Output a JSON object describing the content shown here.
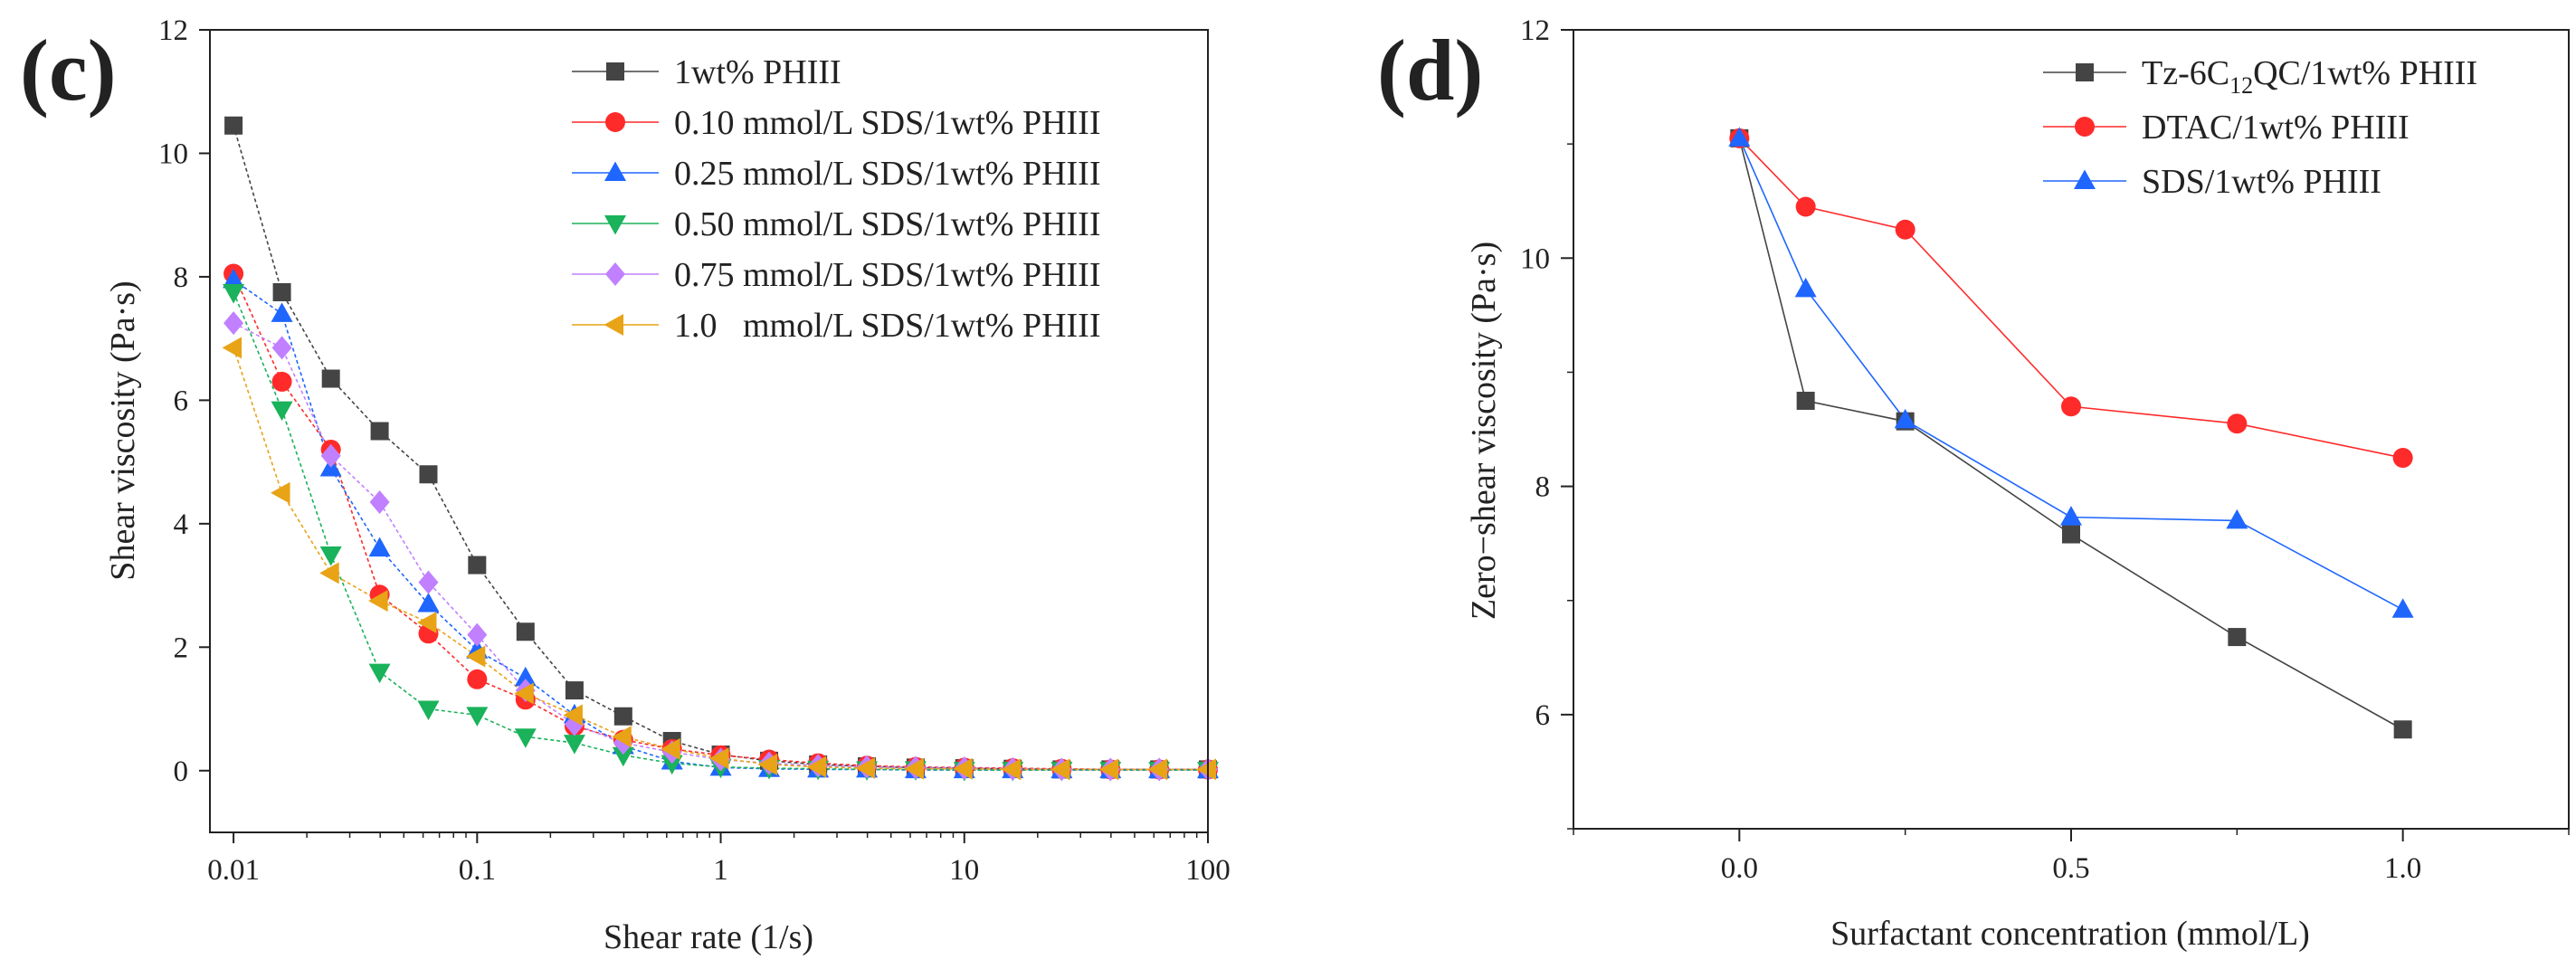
{
  "panels": {
    "c": {
      "tag": "(c)"
    },
    "d": {
      "tag": "(d)"
    }
  },
  "chart_data": [
    {
      "type": "scatter",
      "panel": "(c)",
      "xlabel": "Shear rate (1/s)",
      "ylabel": "Shear viscosity (Pa·s)",
      "xscale": "log",
      "xlim": [
        0.008,
        100
      ],
      "ylim": [
        -1,
        12
      ],
      "xticks": [
        0.01,
        0.1,
        1,
        10,
        100
      ],
      "xtick_labels": [
        "0.01",
        "0.1",
        "1",
        "10",
        "100"
      ],
      "yticks": [
        0,
        2,
        4,
        6,
        8,
        10,
        12
      ],
      "ytick_labels": [
        "0",
        "2",
        "4",
        "6",
        "8",
        "10",
        "12"
      ],
      "legend_position": "top-right",
      "x": [
        0.01,
        0.0158,
        0.0251,
        0.0398,
        0.0631,
        0.1,
        0.158,
        0.251,
        0.398,
        0.631,
        1,
        1.58,
        2.51,
        3.98,
        6.31,
        10,
        15.8,
        25.1,
        39.8,
        63.1,
        100
      ],
      "series": [
        {
          "name": "1wt% PHIII",
          "color": "#444444",
          "marker": "square",
          "values": [
            10.45,
            7.75,
            6.35,
            5.5,
            4.8,
            3.33,
            2.25,
            1.3,
            0.88,
            0.48,
            0.26,
            0.16,
            0.1,
            0.07,
            0.05,
            0.04,
            0.03,
            0.02,
            0.02,
            0.02,
            0.02
          ]
        },
        {
          "name": "0.10 mmol/L SDS/1wt% PHIII",
          "color": "#ff2a2a",
          "marker": "circle",
          "values": [
            8.05,
            6.3,
            5.2,
            2.85,
            2.22,
            1.48,
            1.15,
            0.72,
            0.5,
            0.35,
            0.25,
            0.18,
            0.12,
            0.08,
            0.06,
            0.05,
            0.04,
            0.03,
            0.02,
            0.02,
            0.02
          ]
        },
        {
          "name": "0.25 mmol/L SDS/1wt% PHIII",
          "color": "#1f66ff",
          "marker": "triangle-up",
          "values": [
            7.95,
            7.4,
            4.9,
            3.6,
            2.7,
            1.95,
            1.5,
            0.9,
            0.4,
            0.15,
            0.05,
            0.03,
            0.02,
            0.02,
            0.01,
            0.01,
            0.01,
            0.01,
            0.01,
            0.01,
            0.01
          ]
        },
        {
          "name": "0.50 mmol/L SDS/1wt% PHIII",
          "color": "#1ab25a",
          "marker": "triangle-down",
          "values": [
            7.75,
            5.85,
            3.5,
            1.6,
            1.0,
            0.9,
            0.55,
            0.45,
            0.25,
            0.12,
            0.06,
            0.04,
            0.03,
            0.02,
            0.02,
            0.01,
            0.01,
            0.01,
            0.01,
            0.01,
            0.01
          ]
        },
        {
          "name": "0.75 mmol/L SDS/1wt% PHIII",
          "color": "#c080ff",
          "marker": "diamond",
          "values": [
            7.25,
            6.85,
            5.1,
            4.35,
            3.05,
            2.2,
            1.3,
            0.75,
            0.45,
            0.3,
            0.18,
            0.12,
            0.08,
            0.06,
            0.05,
            0.04,
            0.03,
            0.02,
            0.02,
            0.02,
            0.02
          ]
        },
        {
          "name": "1.0   mmol/L SDS/1wt% PHIII",
          "color": "#e8a317",
          "marker": "triangle-left",
          "values": [
            6.85,
            4.5,
            3.2,
            2.75,
            2.4,
            1.85,
            1.25,
            0.9,
            0.55,
            0.35,
            0.2,
            0.1,
            0.06,
            0.04,
            0.03,
            0.03,
            0.02,
            0.02,
            0.02,
            0.02,
            0.02
          ]
        }
      ]
    },
    {
      "type": "line",
      "panel": "(d)",
      "xlabel": "Surfactant concentration (mmol/L)",
      "ylabel": "Zero−shear viscosity (Pa·s)",
      "xlim": [
        -0.25,
        1.25
      ],
      "ylim": [
        5,
        12
      ],
      "xticks": [
        0,
        0.5,
        1
      ],
      "xtick_labels": [
        "0.0",
        "0.5",
        "1.0"
      ],
      "yticks": [
        6,
        8,
        10,
        12
      ],
      "ytick_labels": [
        "6",
        "8",
        "10",
        "12"
      ],
      "legend_position": "top-right",
      "x": [
        0,
        0.1,
        0.25,
        0.5,
        0.75,
        1.0
      ],
      "series": [
        {
          "name_main": "Tz-6C",
          "name_sub": "12",
          "name_rest": "QC/1wt% PHIII",
          "color": "#444444",
          "marker": "square",
          "values": [
            11.05,
            8.75,
            8.57,
            7.58,
            6.68,
            5.87
          ]
        },
        {
          "name": "DTAC/1wt% PHIII",
          "color": "#ff2a2a",
          "marker": "circle",
          "values": [
            11.05,
            10.45,
            10.25,
            8.7,
            8.55,
            8.25
          ]
        },
        {
          "name": "SDS/1wt% PHIII",
          "color": "#1f66ff",
          "marker": "triangle-up",
          "values": [
            11.05,
            9.73,
            8.58,
            7.73,
            7.7,
            6.92
          ]
        }
      ]
    }
  ]
}
